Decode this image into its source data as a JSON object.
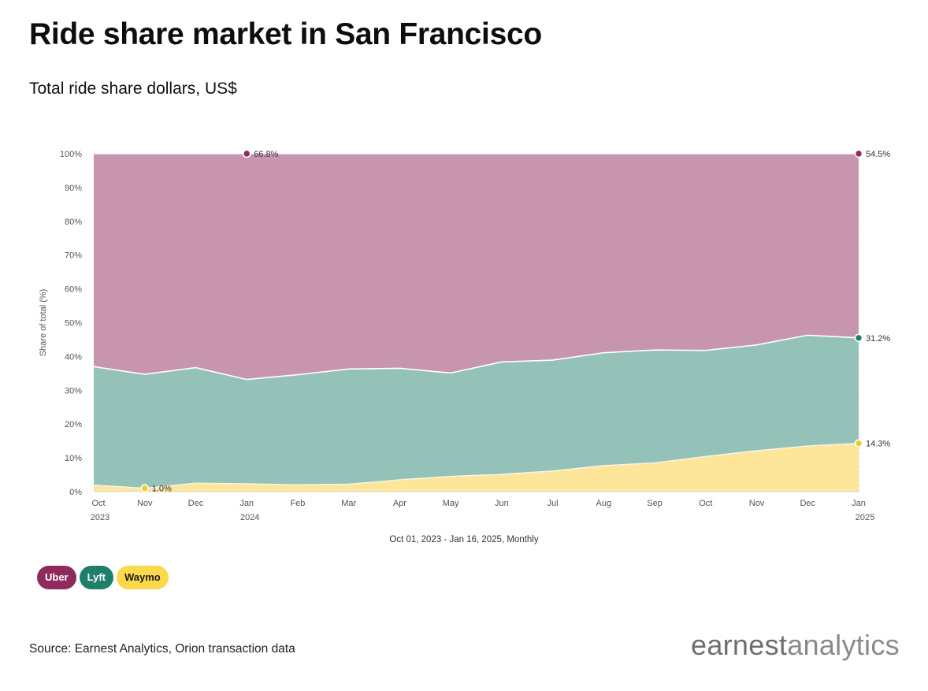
{
  "title": "Ride share market in San Francisco",
  "subtitle": "Total ride share dollars, US$",
  "date_range": "Oct 01, 2023 - Jan 16, 2025, Monthly",
  "source": "Source: Earnest Analytics, Orion transaction data",
  "logo": {
    "part1": "earnest",
    "part2": "analytics"
  },
  "legend": [
    {
      "label": "Uber",
      "color": "#8f2a5c",
      "text_color": "#ffffff"
    },
    {
      "label": "Lyft",
      "color": "#1f7f6b",
      "text_color": "#ffffff"
    },
    {
      "label": "Waymo",
      "color": "#fbd94a",
      "text_color": "#1a1a1a"
    }
  ],
  "chart_data": {
    "type": "area",
    "stacked": true,
    "ylabel": "Share of total (%)",
    "ylim": [
      0,
      100
    ],
    "yticks": [
      "0%",
      "10%",
      "20%",
      "30%",
      "40%",
      "50%",
      "60%",
      "70%",
      "80%",
      "90%",
      "100%"
    ],
    "categories": [
      "Oct 2023",
      "Nov 2023",
      "Dec 2023",
      "Jan 2024",
      "Feb 2024",
      "Mar 2024",
      "Apr 2024",
      "May 2024",
      "Jun 2024",
      "Jul 2024",
      "Aug 2024",
      "Sep 2024",
      "Oct 2024",
      "Nov 2024",
      "Dec 2024",
      "Jan 2025"
    ],
    "x_tick_labels": [
      [
        "Oct",
        "2023"
      ],
      [
        "Nov",
        ""
      ],
      [
        "Dec",
        ""
      ],
      [
        "Jan",
        "2024"
      ],
      [
        "Feb",
        ""
      ],
      [
        "Mar",
        ""
      ],
      [
        "Apr",
        ""
      ],
      [
        "May",
        ""
      ],
      [
        "Jun",
        ""
      ],
      [
        "Jul",
        ""
      ],
      [
        "Aug",
        ""
      ],
      [
        "Sep",
        ""
      ],
      [
        "Oct",
        ""
      ],
      [
        "Nov",
        ""
      ],
      [
        "Dec",
        ""
      ],
      [
        "Jan",
        "2025"
      ]
    ],
    "series": [
      {
        "name": "Waymo",
        "color": "#fde59a",
        "line": "#f7f3e3",
        "dot": "#f2cc2a",
        "values": [
          1.9,
          1.0,
          2.5,
          2.3,
          2.0,
          2.2,
          3.5,
          4.5,
          5.1,
          6.1,
          7.7,
          8.5,
          10.4,
          12.1,
          13.5,
          14.3
        ]
      },
      {
        "name": "Lyft",
        "color": "#94c2b8",
        "line": "#ffffff",
        "dot": "#1f7f6b",
        "values": [
          35.1,
          33.7,
          34.2,
          30.9,
          32.6,
          34.1,
          33.0,
          30.6,
          33.3,
          32.8,
          33.4,
          33.4,
          31.4,
          31.3,
          32.8,
          31.2
        ]
      },
      {
        "name": "Uber",
        "color": "#c895af",
        "line": "#ffffff",
        "dot": "#8f2a5c",
        "values": [
          63.0,
          65.3,
          63.3,
          66.8,
          65.4,
          63.7,
          63.5,
          64.9,
          61.6,
          61.1,
          58.9,
          58.1,
          58.2,
          56.6,
          53.7,
          54.5
        ]
      }
    ],
    "annotations": [
      {
        "series": "Uber",
        "index": 3,
        "label": "66.8%"
      },
      {
        "series": "Uber",
        "index": 15,
        "label": "54.5%"
      },
      {
        "series": "Lyft",
        "index": 15,
        "label": "31.2%"
      },
      {
        "series": "Waymo",
        "index": 1,
        "label": "1.0%"
      },
      {
        "series": "Waymo",
        "index": 15,
        "label": "14.3%"
      }
    ],
    "grid": false,
    "legend_position": "bottom-left"
  }
}
